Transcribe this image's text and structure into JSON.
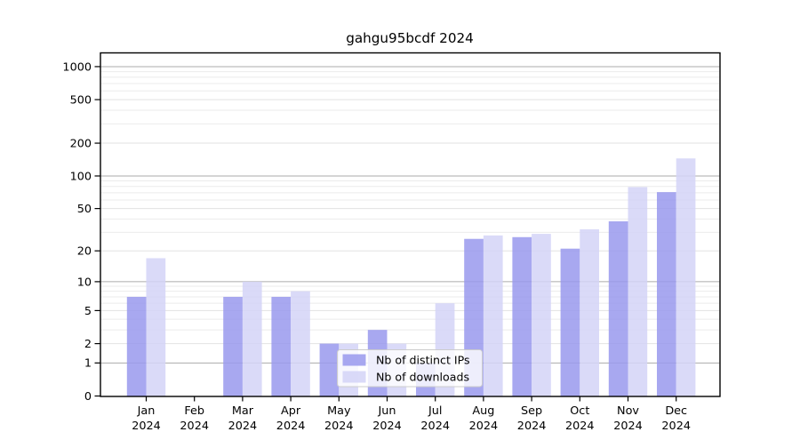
{
  "chart_data": {
    "type": "bar",
    "title": "gahgu95bcdf 2024",
    "year_label": "2024",
    "months": [
      "Jan",
      "Feb",
      "Mar",
      "Apr",
      "May",
      "Jun",
      "Jul",
      "Aug",
      "Sep",
      "Oct",
      "Nov",
      "Dec"
    ],
    "categories": [
      "Jan 2024",
      "Feb 2024",
      "Mar 2024",
      "Apr 2024",
      "May 2024",
      "Jun 2024",
      "Jul 2024",
      "Aug 2024",
      "Sep 2024",
      "Oct 2024",
      "Nov 2024",
      "Dec 2024"
    ],
    "series": [
      {
        "name": "Nb of distinct IPs",
        "color": "#a8a8f0",
        "values": [
          7,
          0,
          7,
          7,
          2,
          3,
          1,
          26,
          27,
          21,
          38,
          71
        ]
      },
      {
        "name": "Nb of downloads",
        "color": "#dadaf8",
        "values": [
          17,
          0,
          10,
          8,
          2,
          2,
          6,
          28,
          29,
          32,
          79,
          145
        ]
      }
    ],
    "y_ticks": [
      0,
      1,
      2,
      5,
      10,
      20,
      50,
      100,
      200,
      500,
      1000
    ],
    "ylim": [
      0,
      1000
    ],
    "xlabel": "",
    "ylabel": "",
    "scale": "log10(1+x)",
    "grid": true,
    "legend_position": "lower-center",
    "colors": {
      "axis": "#000000",
      "grid_decade": "#ababab",
      "grid_labeled": "#e2e2e2",
      "grid_minor": "#ebebeb",
      "legend_bg": "#ffffff",
      "legend_border": "#cccccc"
    }
  }
}
